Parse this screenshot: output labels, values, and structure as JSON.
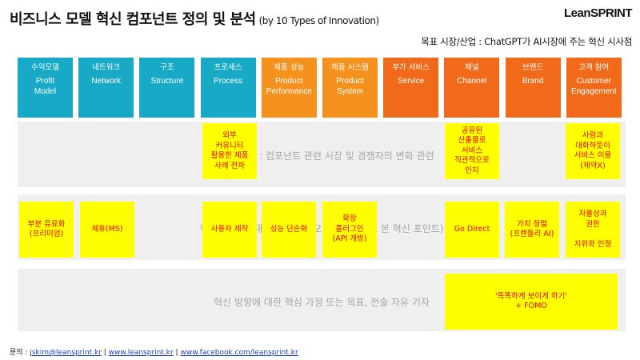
{
  "header": {
    "title": "비즈니스 모델 혁신 컴포넌트 정의 및 분석",
    "subtitle": "(by 10 Types of Innovation)",
    "brand": "LeanSPRINT",
    "target": "목표 시장/산업 : ChatGPT가 AI시장에 주는 혁신 시사점"
  },
  "categories": [
    {
      "ko": "수익모델",
      "en": "Profit\nModel",
      "color": "#17a9c6"
    },
    {
      "ko": "네트워크",
      "en": "Network",
      "color": "#17a9c6"
    },
    {
      "ko": "구조",
      "en": "Structure",
      "color": "#17a9c6"
    },
    {
      "ko": "프로세스",
      "en": "Process",
      "color": "#17a9c6"
    },
    {
      "ko": "제품 성능",
      "en": "Product\nPerformance",
      "color": "#f5921e"
    },
    {
      "ko": "제품 시스템",
      "en": "Product\nSystem",
      "color": "#f5921e"
    },
    {
      "ko": "부가 서비스",
      "en": "Service",
      "color": "#f06a1a"
    },
    {
      "ko": "채널",
      "en": "Channel",
      "color": "#f06a1a"
    },
    {
      "ko": "브랜드",
      "en": "Brand",
      "color": "#f06a1a"
    },
    {
      "ko": "고객 참여",
      "en": "Customer\nEngagement",
      "color": "#f06a1a"
    }
  ],
  "rows": {
    "trend": "트렌드 포착 : 컴포넌트 관련 시장 및 경쟁자의 변화 관련",
    "direction": "혁신 방향 (현재의 비즈니스 모델을 기준으로 본 혁신 포인트)",
    "hypothesis": "혁신 방향에 대한 핵심 가정 또는 목표, 전술 자유 기자"
  },
  "notes": {
    "process_trend": "외부\n커뮤니티\n활용한 제품\n사례 전파",
    "channel_trend": "공유된\n산출물로\n서비스\n직관적으로\n인지",
    "engagement_trend": "사람과\n대화하듯이\n서비스 이용\n(제약X)",
    "profit_direction": "부분 유료화\n(프리미엄)",
    "network_direction": "제휴(MS)",
    "process_direction": "사용자 제작",
    "performance_direction": "성능 단순화",
    "system_direction": "확장\n플러그인\n(API 개방)",
    "channel_direction": "Go Direct",
    "brand_direction": "가치 정렬\n(프렌들리 AI)",
    "engagement_direction": "자율성과\n권한\n\n지위와 인정",
    "hypothesis_note": "'똑똑하게 보이게 하기'\n+ FOMO"
  },
  "footer": {
    "label": "문의 :",
    "email": "jskim@leansprint.kr",
    "site": "www.leansprint.kr",
    "facebook": "www.facebook.com/leansprint.kr",
    "sep": "|"
  }
}
